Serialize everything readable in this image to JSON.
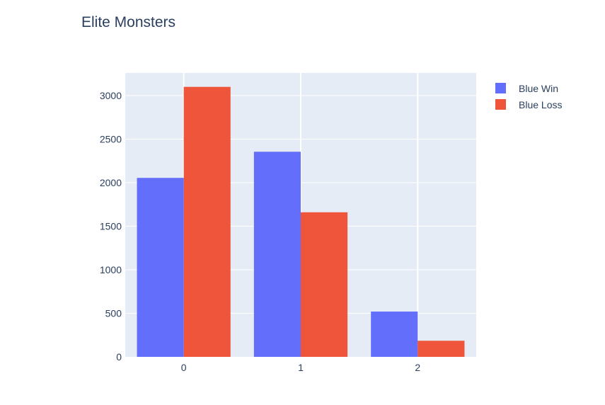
{
  "chart_data": {
    "type": "bar",
    "title": "Elite Monsters",
    "xlabel": "",
    "ylabel": "",
    "categories": [
      "0",
      "1",
      "2"
    ],
    "series": [
      {
        "name": "Blue Win",
        "values": [
          2055,
          2355,
          520
        ],
        "color": "#636efa"
      },
      {
        "name": "Blue Loss",
        "values": [
          3100,
          1660,
          185
        ],
        "color": "#ef553b"
      }
    ],
    "ylim": [
      0,
      3260
    ],
    "yticks": [
      0,
      500,
      1000,
      1500,
      2000,
      2500,
      3000
    ],
    "grid": true,
    "legend": "top-right",
    "plot_background": "#e5ecf6"
  }
}
